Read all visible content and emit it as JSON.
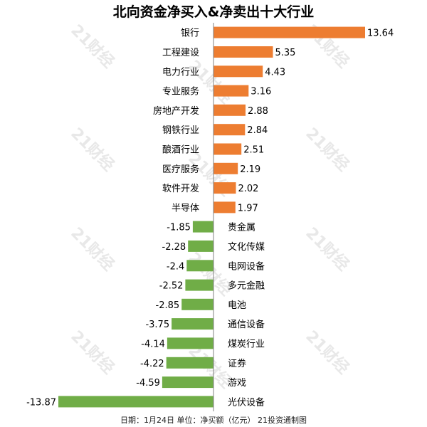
{
  "chart_data": {
    "type": "bar",
    "orientation": "horizontal",
    "title": "北向资金净买入&净卖出十大行业",
    "categories": [
      "银行",
      "工程建设",
      "电力行业",
      "专业服务",
      "房地产开发",
      "钢铁行业",
      "酿酒行业",
      "医疗服务",
      "软件开发",
      "半导体",
      "贵金属",
      "文化传媒",
      "电网设备",
      "多元金融",
      "电池",
      "通信设备",
      "煤炭行业",
      "证券",
      "游戏",
      "光伏设备"
    ],
    "values": [
      13.64,
      5.35,
      4.43,
      3.16,
      2.88,
      2.84,
      2.51,
      2.19,
      2.02,
      1.97,
      -1.85,
      -2.28,
      -2.4,
      -2.52,
      -2.85,
      -3.75,
      -4.14,
      -4.22,
      -4.59,
      -13.87
    ],
    "value_labels": [
      "13.64",
      "5.35",
      "4.43",
      "3.16",
      "2.88",
      "2.84",
      "2.51",
      "2.19",
      "2.02",
      "1.97",
      "-1.85",
      "-2.28",
      "-2.4",
      "-2.52",
      "-2.85",
      "-3.75",
      "-4.14",
      "-4.22",
      "-4.59",
      "-13.87"
    ],
    "colors": {
      "positive": "#ED7D31",
      "negative": "#70AD47",
      "axis": "#808080",
      "watermark": "#d6d6d6"
    },
    "xlim": [
      -13.87,
      13.64
    ],
    "grid": false,
    "footer": "日期：1月24日 单位：净买额（亿元） 21投资通制图"
  },
  "watermark": {
    "text": "21财经"
  }
}
